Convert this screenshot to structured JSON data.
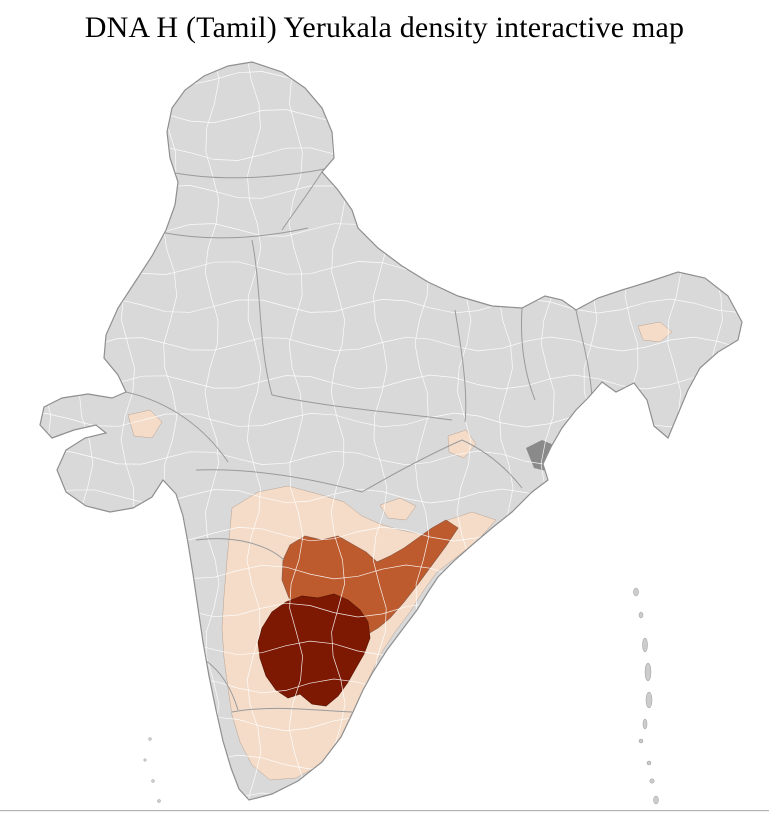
{
  "title": "DNA H (Tamil) Yerukala density interactive map",
  "map": {
    "label": "India district choropleth map",
    "colors": {
      "background": "#ffffff",
      "base_fill": "#d9d9d9",
      "outline_stroke": "#8f8f8f",
      "district_line": "#ffffff",
      "state_line": "#9a9a9a",
      "density_low": "#f4dcc9",
      "density_medium": "#bd5a2e",
      "density_high": "#7d1903",
      "no_data_dark": "#8a8a8a",
      "island_fill": "#cccccc",
      "island_stroke": "#9a9a9a",
      "footer_line": "#b3b3b3"
    }
  }
}
